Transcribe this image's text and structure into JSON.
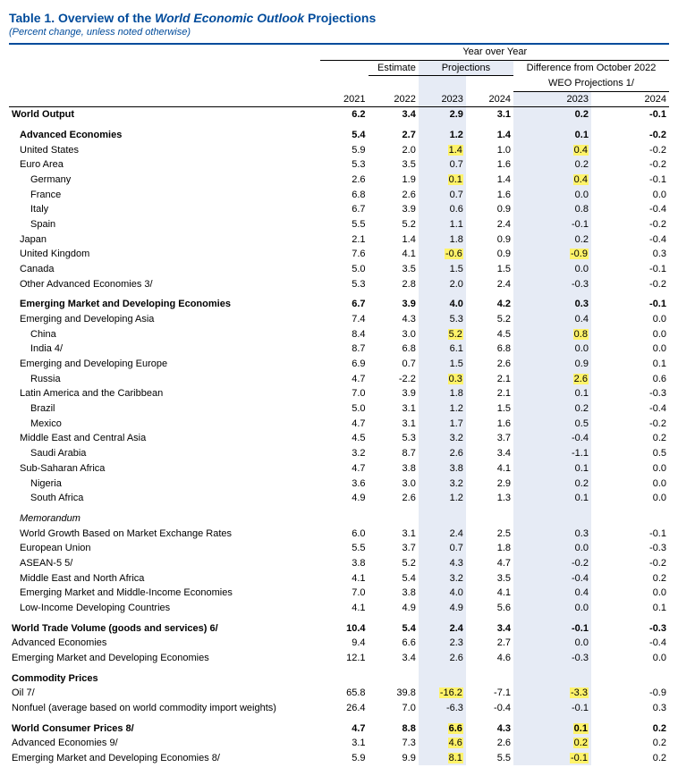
{
  "title_prefix": "Table 1. Overview of the ",
  "title_italic": "World Economic Outlook",
  "title_suffix": " Projections",
  "subtitle": "(Percent change, unless noted otherwise)",
  "header": {
    "year_over_year": "Year over Year",
    "estimate": "Estimate",
    "projections": "Projections",
    "diff1": "Difference from October 2022",
    "diff2": "WEO Projections 1/",
    "y2021": "2021",
    "y2022": "2022",
    "y2023": "2023",
    "y2024": "2024",
    "d2023": "2023",
    "d2024": "2024"
  },
  "rows": [
    {
      "style": "bold",
      "indent": 0,
      "label": "World Output",
      "c": [
        "6.2",
        "3.4",
        "2.9",
        "3.1",
        "0.2",
        "-0.1"
      ],
      "hl": [
        false,
        false,
        false,
        false,
        false,
        false
      ]
    },
    {
      "spacer": true
    },
    {
      "style": "bold",
      "indent": 1,
      "label": "Advanced Economies",
      "c": [
        "5.4",
        "2.7",
        "1.2",
        "1.4",
        "0.1",
        "-0.2"
      ],
      "hl": [
        false,
        false,
        false,
        false,
        false,
        false
      ]
    },
    {
      "style": "",
      "indent": 1,
      "label": "United States",
      "c": [
        "5.9",
        "2.0",
        "1.4",
        "1.0",
        "0.4",
        "-0.2"
      ],
      "hl": [
        false,
        false,
        true,
        false,
        true,
        false
      ]
    },
    {
      "style": "",
      "indent": 1,
      "label": "Euro Area",
      "c": [
        "5.3",
        "3.5",
        "0.7",
        "1.6",
        "0.2",
        "-0.2"
      ],
      "hl": [
        false,
        false,
        false,
        false,
        false,
        false
      ]
    },
    {
      "style": "",
      "indent": 2,
      "label": "Germany",
      "c": [
        "2.6",
        "1.9",
        "0.1",
        "1.4",
        "0.4",
        "-0.1"
      ],
      "hl": [
        false,
        false,
        true,
        false,
        true,
        false
      ]
    },
    {
      "style": "",
      "indent": 2,
      "label": "France",
      "c": [
        "6.8",
        "2.6",
        "0.7",
        "1.6",
        "0.0",
        "0.0"
      ],
      "hl": [
        false,
        false,
        false,
        false,
        false,
        false
      ]
    },
    {
      "style": "",
      "indent": 2,
      "label": "Italy",
      "c": [
        "6.7",
        "3.9",
        "0.6",
        "0.9",
        "0.8",
        "-0.4"
      ],
      "hl": [
        false,
        false,
        false,
        false,
        false,
        false
      ]
    },
    {
      "style": "",
      "indent": 2,
      "label": "Spain",
      "c": [
        "5.5",
        "5.2",
        "1.1",
        "2.4",
        "-0.1",
        "-0.2"
      ],
      "hl": [
        false,
        false,
        false,
        false,
        false,
        false
      ]
    },
    {
      "style": "",
      "indent": 1,
      "label": "Japan",
      "c": [
        "2.1",
        "1.4",
        "1.8",
        "0.9",
        "0.2",
        "-0.4"
      ],
      "hl": [
        false,
        false,
        false,
        false,
        false,
        false
      ]
    },
    {
      "style": "",
      "indent": 1,
      "label": "United Kingdom",
      "c": [
        "7.6",
        "4.1",
        "-0.6",
        "0.9",
        "-0.9",
        "0.3"
      ],
      "hl": [
        false,
        false,
        true,
        false,
        true,
        false
      ]
    },
    {
      "style": "",
      "indent": 1,
      "label": "Canada",
      "c": [
        "5.0",
        "3.5",
        "1.5",
        "1.5",
        "0.0",
        "-0.1"
      ],
      "hl": [
        false,
        false,
        false,
        false,
        false,
        false
      ]
    },
    {
      "style": "",
      "indent": 1,
      "label": "Other Advanced Economies 3/",
      "c": [
        "5.3",
        "2.8",
        "2.0",
        "2.4",
        "-0.3",
        "-0.2"
      ],
      "hl": [
        false,
        false,
        false,
        false,
        false,
        false
      ]
    },
    {
      "spacer": true
    },
    {
      "style": "bold",
      "indent": 1,
      "label": "Emerging Market and Developing Economies",
      "c": [
        "6.7",
        "3.9",
        "4.0",
        "4.2",
        "0.3",
        "-0.1"
      ],
      "hl": [
        false,
        false,
        false,
        false,
        false,
        false
      ]
    },
    {
      "style": "",
      "indent": 1,
      "label": "Emerging and Developing Asia",
      "c": [
        "7.4",
        "4.3",
        "5.3",
        "5.2",
        "0.4",
        "0.0"
      ],
      "hl": [
        false,
        false,
        false,
        false,
        false,
        false
      ]
    },
    {
      "style": "",
      "indent": 2,
      "label": "China",
      "c": [
        "8.4",
        "3.0",
        "5.2",
        "4.5",
        "0.8",
        "0.0"
      ],
      "hl": [
        false,
        false,
        true,
        false,
        true,
        false
      ]
    },
    {
      "style": "",
      "indent": 2,
      "label": "India 4/",
      "c": [
        "8.7",
        "6.8",
        "6.1",
        "6.8",
        "0.0",
        "0.0"
      ],
      "hl": [
        false,
        false,
        false,
        false,
        false,
        false
      ]
    },
    {
      "style": "",
      "indent": 1,
      "label": "Emerging and Developing Europe",
      "c": [
        "6.9",
        "0.7",
        "1.5",
        "2.6",
        "0.9",
        "0.1"
      ],
      "hl": [
        false,
        false,
        false,
        false,
        false,
        false
      ]
    },
    {
      "style": "",
      "indent": 2,
      "label": "Russia",
      "c": [
        "4.7",
        "-2.2",
        "0.3",
        "2.1",
        "2.6",
        "0.6"
      ],
      "hl": [
        false,
        false,
        true,
        false,
        true,
        false
      ]
    },
    {
      "style": "",
      "indent": 1,
      "label": "Latin America and the Caribbean",
      "c": [
        "7.0",
        "3.9",
        "1.8",
        "2.1",
        "0.1",
        "-0.3"
      ],
      "hl": [
        false,
        false,
        false,
        false,
        false,
        false
      ]
    },
    {
      "style": "",
      "indent": 2,
      "label": "Brazil",
      "c": [
        "5.0",
        "3.1",
        "1.2",
        "1.5",
        "0.2",
        "-0.4"
      ],
      "hl": [
        false,
        false,
        false,
        false,
        false,
        false
      ]
    },
    {
      "style": "",
      "indent": 2,
      "label": "Mexico",
      "c": [
        "4.7",
        "3.1",
        "1.7",
        "1.6",
        "0.5",
        "-0.2"
      ],
      "hl": [
        false,
        false,
        false,
        false,
        false,
        false
      ]
    },
    {
      "style": "",
      "indent": 1,
      "label": "Middle East and Central Asia",
      "c": [
        "4.5",
        "5.3",
        "3.2",
        "3.7",
        "-0.4",
        "0.2"
      ],
      "hl": [
        false,
        false,
        false,
        false,
        false,
        false
      ]
    },
    {
      "style": "",
      "indent": 2,
      "label": "Saudi Arabia",
      "c": [
        "3.2",
        "8.7",
        "2.6",
        "3.4",
        "-1.1",
        "0.5"
      ],
      "hl": [
        false,
        false,
        false,
        false,
        false,
        false
      ]
    },
    {
      "style": "",
      "indent": 1,
      "label": "Sub-Saharan Africa",
      "c": [
        "4.7",
        "3.8",
        "3.8",
        "4.1",
        "0.1",
        "0.0"
      ],
      "hl": [
        false,
        false,
        false,
        false,
        false,
        false
      ]
    },
    {
      "style": "",
      "indent": 2,
      "label": "Nigeria",
      "c": [
        "3.6",
        "3.0",
        "3.2",
        "2.9",
        "0.2",
        "0.0"
      ],
      "hl": [
        false,
        false,
        false,
        false,
        false,
        false
      ]
    },
    {
      "style": "",
      "indent": 2,
      "label": "South Africa",
      "c": [
        "4.9",
        "2.6",
        "1.2",
        "1.3",
        "0.1",
        "0.0"
      ],
      "hl": [
        false,
        false,
        false,
        false,
        false,
        false
      ]
    },
    {
      "spacer": true
    },
    {
      "style": "italic",
      "indent": 1,
      "label": "Memorandum",
      "c": [
        "",
        "",
        "",
        "",
        "",
        ""
      ],
      "hl": [
        false,
        false,
        false,
        false,
        false,
        false
      ]
    },
    {
      "style": "",
      "indent": 1,
      "label": "World Growth Based on Market Exchange Rates",
      "c": [
        "6.0",
        "3.1",
        "2.4",
        "2.5",
        "0.3",
        "-0.1"
      ],
      "hl": [
        false,
        false,
        false,
        false,
        false,
        false
      ]
    },
    {
      "style": "",
      "indent": 1,
      "label": "European Union",
      "c": [
        "5.5",
        "3.7",
        "0.7",
        "1.8",
        "0.0",
        "-0.3"
      ],
      "hl": [
        false,
        false,
        false,
        false,
        false,
        false
      ]
    },
    {
      "style": "",
      "indent": 1,
      "label": "ASEAN-5 5/",
      "c": [
        "3.8",
        "5.2",
        "4.3",
        "4.7",
        "-0.2",
        "-0.2"
      ],
      "hl": [
        false,
        false,
        false,
        false,
        false,
        false
      ]
    },
    {
      "style": "",
      "indent": 1,
      "label": "Middle East and North Africa",
      "c": [
        "4.1",
        "5.4",
        "3.2",
        "3.5",
        "-0.4",
        "0.2"
      ],
      "hl": [
        false,
        false,
        false,
        false,
        false,
        false
      ]
    },
    {
      "style": "",
      "indent": 1,
      "label": "Emerging Market and Middle-Income Economies",
      "c": [
        "7.0",
        "3.8",
        "4.0",
        "4.1",
        "0.4",
        "0.0"
      ],
      "hl": [
        false,
        false,
        false,
        false,
        false,
        false
      ]
    },
    {
      "style": "",
      "indent": 1,
      "label": "Low-Income Developing Countries",
      "c": [
        "4.1",
        "4.9",
        "4.9",
        "5.6",
        "0.0",
        "0.1"
      ],
      "hl": [
        false,
        false,
        false,
        false,
        false,
        false
      ]
    },
    {
      "spacer": true
    },
    {
      "style": "bold",
      "indent": 0,
      "label": "World Trade Volume (goods and services) 6/",
      "c": [
        "10.4",
        "5.4",
        "2.4",
        "3.4",
        "-0.1",
        "-0.3"
      ],
      "hl": [
        false,
        false,
        false,
        false,
        false,
        false
      ]
    },
    {
      "style": "",
      "indent": 0,
      "label": "Advanced Economies",
      "c": [
        "9.4",
        "6.6",
        "2.3",
        "2.7",
        "0.0",
        "-0.4"
      ],
      "hl": [
        false,
        false,
        false,
        false,
        false,
        false
      ]
    },
    {
      "style": "",
      "indent": 0,
      "label": "Emerging Market and Developing Economies",
      "c": [
        "12.1",
        "3.4",
        "2.6",
        "4.6",
        "-0.3",
        "0.0"
      ],
      "hl": [
        false,
        false,
        false,
        false,
        false,
        false
      ]
    },
    {
      "spacer": true
    },
    {
      "style": "bold",
      "indent": 0,
      "label": "Commodity Prices",
      "c": [
        "",
        "",
        "",
        "",
        "",
        ""
      ],
      "hl": [
        false,
        false,
        false,
        false,
        false,
        false
      ]
    },
    {
      "style": "",
      "indent": 0,
      "label": "Oil 7/",
      "c": [
        "65.8",
        "39.8",
        "-16.2",
        "-7.1",
        "-3.3",
        "-0.9"
      ],
      "hl": [
        false,
        false,
        true,
        false,
        true,
        false
      ]
    },
    {
      "style": "",
      "indent": 0,
      "label": "Nonfuel (average based on world commodity import weights)",
      "c": [
        "26.4",
        "7.0",
        "-6.3",
        "-0.4",
        "-0.1",
        "0.3"
      ],
      "hl": [
        false,
        false,
        false,
        false,
        false,
        false
      ]
    },
    {
      "spacer": true
    },
    {
      "style": "bold",
      "indent": 0,
      "label": "World Consumer Prices 8/",
      "c": [
        "4.7",
        "8.8",
        "6.6",
        "4.3",
        "0.1",
        "0.2"
      ],
      "hl": [
        false,
        false,
        true,
        false,
        true,
        false
      ]
    },
    {
      "style": "",
      "indent": 0,
      "label": "Advanced Economies 9/",
      "c": [
        "3.1",
        "7.3",
        "4.6",
        "2.6",
        "0.2",
        "0.2"
      ],
      "hl": [
        false,
        false,
        true,
        false,
        true,
        false
      ]
    },
    {
      "style": "",
      "indent": 0,
      "label": "Emerging Market and Developing Economies 8/",
      "c": [
        "5.9",
        "9.9",
        "8.1",
        "5.5",
        "-0.1",
        "0.2"
      ],
      "hl": [
        false,
        false,
        true,
        false,
        true,
        false
      ]
    }
  ],
  "columns_shade": [
    false,
    false,
    true,
    false,
    true,
    false
  ],
  "layout": {
    "title_color": "#004b9b",
    "highlight_color": "#fff36a",
    "shade_color": "#e6ebf5",
    "font_size_body": 11,
    "font_size_title": 14,
    "background": "#ffffff"
  }
}
